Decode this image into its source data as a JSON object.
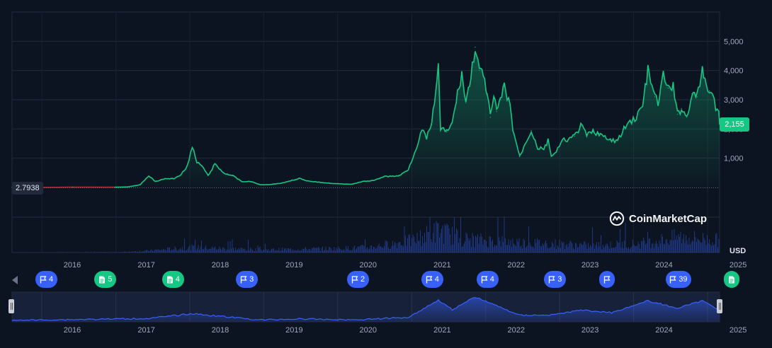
{
  "chart_data": {
    "type": "area",
    "currency_label": "USD",
    "y_ticks": [
      "1,000",
      "2,000",
      "3,000",
      "4,000",
      "5,000"
    ],
    "y_tick_values": [
      1000,
      2000,
      3000,
      4000,
      5000
    ],
    "ylim": [
      0,
      6000
    ],
    "x_ticks": [
      "2016",
      "2017",
      "2018",
      "2019",
      "2020",
      "2021",
      "2022",
      "2023",
      "2024",
      "2025"
    ],
    "xlim": [
      "2015-08-07",
      "2025-03-01"
    ],
    "current_price_label": "2,155",
    "start_price_label": "2.7938",
    "grid": true,
    "price_series": {
      "x": [
        "2015-08-07",
        "2016-01-01",
        "2016-06-01",
        "2017-01-01",
        "2017-03-01",
        "2017-05-01",
        "2017-06-12",
        "2017-07-15",
        "2017-09-01",
        "2017-10-15",
        "2017-11-20",
        "2017-12-20",
        "2018-01-13",
        "2018-02-05",
        "2018-03-01",
        "2018-04-01",
        "2018-05-05",
        "2018-06-15",
        "2018-08-01",
        "2018-09-15",
        "2018-11-01",
        "2018-12-15",
        "2019-02-01",
        "2019-04-01",
        "2019-06-25",
        "2019-08-01",
        "2019-10-01",
        "2019-12-15",
        "2020-03-13",
        "2020-05-01",
        "2020-07-01",
        "2020-08-15",
        "2020-09-15",
        "2020-11-01",
        "2020-12-15",
        "2021-01-15",
        "2021-02-20",
        "2021-03-15",
        "2021-04-10",
        "2021-05-12",
        "2021-05-23",
        "2021-06-22",
        "2021-07-20",
        "2021-08-15",
        "2021-09-05",
        "2021-09-25",
        "2021-10-20",
        "2021-11-10",
        "2021-12-01",
        "2021-12-20",
        "2022-01-10",
        "2022-01-24",
        "2022-02-10",
        "2022-02-24",
        "2022-03-15",
        "2022-04-03",
        "2022-05-01",
        "2022-05-15",
        "2022-06-18",
        "2022-07-15",
        "2022-08-14",
        "2022-09-15",
        "2022-10-15",
        "2022-11-05",
        "2022-11-21",
        "2022-12-15",
        "2023-01-15",
        "2023-02-15",
        "2023-03-15",
        "2023-04-16",
        "2023-05-15",
        "2023-06-15",
        "2023-07-15",
        "2023-08-20",
        "2023-09-15",
        "2023-10-15",
        "2023-11-15",
        "2023-12-15",
        "2024-01-15",
        "2024-02-15",
        "2024-03-12",
        "2024-04-15",
        "2024-05-01",
        "2024-05-27",
        "2024-06-20",
        "2024-07-15",
        "2024-08-05",
        "2024-08-25",
        "2024-09-20",
        "2024-10-15",
        "2024-11-10",
        "2024-12-06",
        "2024-12-25",
        "2025-01-10",
        "2025-01-25",
        "2025-02-10",
        "2025-02-25",
        "2025-03-01"
      ],
      "y": [
        2.79,
        1,
        10,
        8,
        20,
        90,
        400,
        200,
        300,
        300,
        450,
        750,
        1380,
        850,
        750,
        400,
        800,
        500,
        400,
        200,
        200,
        90,
        100,
        150,
        310,
        220,
        180,
        130,
        110,
        200,
        240,
        380,
        380,
        400,
        620,
        1200,
        1950,
        1700,
        2150,
        4150,
        2000,
        1900,
        2200,
        3200,
        3900,
        2900,
        3800,
        4800,
        4000,
        3800,
        3200,
        2400,
        3100,
        2600,
        3000,
        3450,
        2800,
        2000,
        1050,
        1500,
        1950,
        1350,
        1300,
        1600,
        1100,
        1200,
        1600,
        1650,
        1750,
        2100,
        1800,
        1900,
        1850,
        1650,
        1600,
        1600,
        2000,
        2250,
        2400,
        2800,
        4000,
        3100,
        2900,
        3800,
        3400,
        3450,
        2500,
        2700,
        2400,
        3200,
        3100,
        4000,
        3500,
        3300,
        3200,
        2700,
        2500,
        2155
      ]
    },
    "volume_series": {
      "x": [
        "2015-08-07",
        "2017-01-01",
        "2017-06-01",
        "2018-01-01",
        "2018-06-01",
        "2019-01-01",
        "2019-06-01",
        "2020-01-01",
        "2020-06-01",
        "2021-01-01",
        "2021-05-15",
        "2021-09-01",
        "2022-01-01",
        "2022-06-01",
        "2023-01-01",
        "2023-06-01",
        "2024-01-01",
        "2024-03-15",
        "2024-08-05",
        "2024-12-01",
        "2025-03-01"
      ],
      "y": [
        0.001,
        0.01,
        0.05,
        0.15,
        0.12,
        0.08,
        0.1,
        0.12,
        0.15,
        0.35,
        0.65,
        0.4,
        0.35,
        0.3,
        0.25,
        0.2,
        0.25,
        0.3,
        0.45,
        0.4,
        0.35
      ]
    },
    "navigator_series": {
      "x": [
        "2015-08-07",
        "2017-06-12",
        "2018-01-13",
        "2018-12-15",
        "2019-06-25",
        "2020-03-13",
        "2020-12-15",
        "2021-05-12",
        "2021-07-20",
        "2021-11-10",
        "2022-06-18",
        "2022-11-21",
        "2023-04-16",
        "2023-09-15",
        "2024-03-12",
        "2024-08-05",
        "2024-12-06",
        "2025-03-01"
      ],
      "y": [
        2.79,
        400,
        1380,
        90,
        310,
        110,
        620,
        4150,
        2200,
        4800,
        1050,
        1100,
        2100,
        1600,
        4000,
        2500,
        4000,
        2155
      ]
    },
    "events": [
      {
        "date": "2015-11-15",
        "kind": "flag",
        "count": "4"
      },
      {
        "date": "2016-09-01",
        "kind": "doc",
        "count": "5"
      },
      {
        "date": "2017-08-01",
        "kind": "doc",
        "count": "4"
      },
      {
        "date": "2018-08-01",
        "kind": "flag",
        "count": "3"
      },
      {
        "date": "2020-02-01",
        "kind": "flag",
        "count": "2"
      },
      {
        "date": "2021-02-01",
        "kind": "flag",
        "count": "4"
      },
      {
        "date": "2021-11-01",
        "kind": "flag",
        "count": "4"
      },
      {
        "date": "2022-10-01",
        "kind": "flag",
        "count": "3"
      },
      {
        "date": "2023-06-15",
        "kind": "flag",
        "count": ""
      },
      {
        "date": "2024-06-01",
        "kind": "flag",
        "count": "39"
      },
      {
        "date": "2025-02-20",
        "kind": "doc",
        "count": ""
      }
    ],
    "colors": {
      "background": "#0d1421",
      "line": "#16c784",
      "line_early": "#ea3943",
      "volume": "#3861fb",
      "navigator_line": "#3861fb",
      "event_blue": "#3861fb",
      "event_green": "#16c784"
    }
  },
  "watermark": {
    "brand": "CoinMarketCap",
    "logo_icon": "coinmarketcap-logo-icon"
  }
}
